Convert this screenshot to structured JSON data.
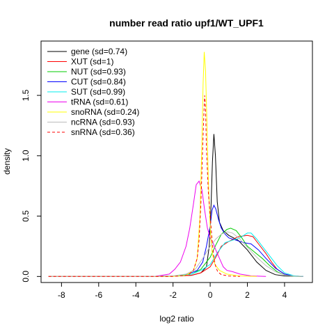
{
  "chart_data": {
    "type": "line",
    "title": "number read ratio upf1/WT_UPF1",
    "xlabel": "log2 ratio",
    "ylabel": "density",
    "xlim": [
      -9.1,
      5.5
    ],
    "ylim": [
      -0.05,
      1.95
    ],
    "x_ticks": [
      -8,
      -6,
      -4,
      -2,
      0,
      2,
      4
    ],
    "x_tick_labels": [
      "-8",
      "-6",
      "-4",
      "-2",
      "0",
      "2",
      "4"
    ],
    "y_ticks": [
      0.0,
      0.5,
      1.0,
      1.5
    ],
    "y_tick_labels": [
      "0.0",
      "0.5",
      "1.0",
      "1.5"
    ],
    "grid": false,
    "legend_position": "top-left",
    "series": [
      {
        "name": "gene (sd=0.74)",
        "color": "#000000",
        "dash": false,
        "points": [
          [
            -8.7,
            0
          ],
          [
            -3.5,
            0
          ],
          [
            -2.0,
            0.002
          ],
          [
            -1.0,
            0.01
          ],
          [
            -0.5,
            0.03
          ],
          [
            -0.2,
            0.08
          ],
          [
            -0.05,
            0.25
          ],
          [
            0.05,
            0.6
          ],
          [
            0.12,
            0.95
          ],
          [
            0.2,
            1.18
          ],
          [
            0.28,
            1.0
          ],
          [
            0.38,
            0.62
          ],
          [
            0.5,
            0.45
          ],
          [
            0.7,
            0.38
          ],
          [
            1.0,
            0.34
          ],
          [
            1.5,
            0.3
          ],
          [
            2.0,
            0.22
          ],
          [
            2.5,
            0.12
          ],
          [
            3.0,
            0.05
          ],
          [
            3.5,
            0.015
          ],
          [
            4.0,
            0.004
          ],
          [
            5.0,
            0
          ]
        ]
      },
      {
        "name": "XUT (sd=1)",
        "color": "#ff0000",
        "dash": false,
        "points": [
          [
            -8.7,
            0
          ],
          [
            -3.5,
            0
          ],
          [
            -2.0,
            0.002
          ],
          [
            -1.0,
            0.01
          ],
          [
            -0.5,
            0.03
          ],
          [
            0,
            0.08
          ],
          [
            0.3,
            0.16
          ],
          [
            0.6,
            0.25
          ],
          [
            1.0,
            0.29
          ],
          [
            1.5,
            0.33
          ],
          [
            2.0,
            0.34
          ],
          [
            2.3,
            0.33
          ],
          [
            2.6,
            0.27
          ],
          [
            3.0,
            0.19
          ],
          [
            3.3,
            0.12
          ],
          [
            3.6,
            0.06
          ],
          [
            4.0,
            0.02
          ],
          [
            4.5,
            0.004
          ],
          [
            5.0,
            0
          ]
        ]
      },
      {
        "name": "NUT (sd=0.93)",
        "color": "#00cc00",
        "dash": false,
        "points": [
          [
            -8.7,
            0
          ],
          [
            -3.5,
            0
          ],
          [
            -2.0,
            0.003
          ],
          [
            -1.0,
            0.02
          ],
          [
            -0.5,
            0.06
          ],
          [
            0,
            0.16
          ],
          [
            0.3,
            0.26
          ],
          [
            0.6,
            0.35
          ],
          [
            0.9,
            0.39
          ],
          [
            1.1,
            0.4
          ],
          [
            1.4,
            0.38
          ],
          [
            1.7,
            0.32
          ],
          [
            2.0,
            0.25
          ],
          [
            2.4,
            0.2
          ],
          [
            2.8,
            0.15
          ],
          [
            3.2,
            0.09
          ],
          [
            3.6,
            0.04
          ],
          [
            4.0,
            0.012
          ],
          [
            4.5,
            0.002
          ],
          [
            5.0,
            0
          ]
        ]
      },
      {
        "name": "CUT (sd=0.84)",
        "color": "#0000ff",
        "dash": false,
        "points": [
          [
            -8.7,
            0
          ],
          [
            -3.5,
            0
          ],
          [
            -2.0,
            0.003
          ],
          [
            -1.2,
            0.02
          ],
          [
            -0.7,
            0.05
          ],
          [
            -0.4,
            0.12
          ],
          [
            -0.2,
            0.25
          ],
          [
            0,
            0.42
          ],
          [
            0.1,
            0.55
          ],
          [
            0.2,
            0.59
          ],
          [
            0.3,
            0.56
          ],
          [
            0.45,
            0.47
          ],
          [
            0.6,
            0.4
          ],
          [
            0.8,
            0.35
          ],
          [
            1.0,
            0.32
          ],
          [
            1.4,
            0.3
          ],
          [
            1.8,
            0.28
          ],
          [
            2.2,
            0.27
          ],
          [
            2.6,
            0.22
          ],
          [
            3.0,
            0.15
          ],
          [
            3.5,
            0.07
          ],
          [
            4.0,
            0.02
          ],
          [
            4.5,
            0.004
          ],
          [
            5.0,
            0
          ]
        ]
      },
      {
        "name": "SUT (sd=0.99)",
        "color": "#00eeee",
        "dash": false,
        "points": [
          [
            -8.7,
            0
          ],
          [
            -3.5,
            0
          ],
          [
            -2.0,
            0.003
          ],
          [
            -1.0,
            0.02
          ],
          [
            -0.5,
            0.05
          ],
          [
            0,
            0.1
          ],
          [
            0.4,
            0.2
          ],
          [
            0.8,
            0.28
          ],
          [
            1.2,
            0.3
          ],
          [
            1.6,
            0.32
          ],
          [
            2.0,
            0.36
          ],
          [
            2.2,
            0.36
          ],
          [
            2.5,
            0.31
          ],
          [
            2.8,
            0.25
          ],
          [
            3.2,
            0.17
          ],
          [
            3.6,
            0.09
          ],
          [
            4.0,
            0.03
          ],
          [
            4.5,
            0.006
          ],
          [
            5.0,
            0
          ]
        ]
      },
      {
        "name": "tRNA (sd=0.61)",
        "color": "#ee00ee",
        "dash": false,
        "points": [
          [
            -8.7,
            0
          ],
          [
            -3.0,
            0
          ],
          [
            -2.6,
            0.01
          ],
          [
            -2.2,
            0.02
          ],
          [
            -1.9,
            0.06
          ],
          [
            -1.6,
            0.12
          ],
          [
            -1.3,
            0.25
          ],
          [
            -1.1,
            0.4
          ],
          [
            -0.9,
            0.6
          ],
          [
            -0.75,
            0.76
          ],
          [
            -0.6,
            0.79
          ],
          [
            -0.45,
            0.72
          ],
          [
            -0.3,
            0.55
          ],
          [
            -0.15,
            0.4
          ],
          [
            0,
            0.32
          ],
          [
            0.15,
            0.28
          ],
          [
            0.3,
            0.22
          ],
          [
            0.5,
            0.15
          ],
          [
            0.7,
            0.08
          ],
          [
            0.9,
            0.05
          ],
          [
            1.2,
            0.04
          ],
          [
            1.6,
            0.02
          ],
          [
            2.2,
            0.005
          ],
          [
            3.0,
            0
          ]
        ]
      },
      {
        "name": "snoRNA (sd=0.24)",
        "color": "#ffff00",
        "dash": false,
        "points": [
          [
            -8.7,
            0
          ],
          [
            -2.0,
            0
          ],
          [
            -1.3,
            0.01
          ],
          [
            -0.9,
            0.05
          ],
          [
            -0.7,
            0.15
          ],
          [
            -0.55,
            0.5
          ],
          [
            -0.45,
            1.1
          ],
          [
            -0.38,
            1.6
          ],
          [
            -0.32,
            1.86
          ],
          [
            -0.25,
            1.7
          ],
          [
            -0.18,
            1.3
          ],
          [
            -0.1,
            0.8
          ],
          [
            0,
            0.4
          ],
          [
            0.1,
            0.2
          ],
          [
            0.25,
            0.1
          ],
          [
            0.5,
            0.05
          ],
          [
            0.9,
            0.02
          ],
          [
            1.5,
            0.005
          ],
          [
            2.5,
            0
          ]
        ]
      },
      {
        "name": "ncRNA (sd=0.93)",
        "color": "#bbbbbb",
        "dash": false,
        "points": [
          [
            -8.7,
            0
          ],
          [
            -3.5,
            0
          ],
          [
            -2.0,
            0.005
          ],
          [
            -1.3,
            0.02
          ],
          [
            -0.8,
            0.06
          ],
          [
            -0.4,
            0.15
          ],
          [
            0,
            0.25
          ],
          [
            0.3,
            0.31
          ],
          [
            0.6,
            0.35
          ],
          [
            0.9,
            0.37
          ],
          [
            1.2,
            0.36
          ],
          [
            1.6,
            0.31
          ],
          [
            2.0,
            0.24
          ],
          [
            2.5,
            0.16
          ],
          [
            3.0,
            0.09
          ],
          [
            3.5,
            0.04
          ],
          [
            4.0,
            0.012
          ],
          [
            4.5,
            0.003
          ],
          [
            5.0,
            0
          ]
        ]
      },
      {
        "name": "snRNA (sd=0.36)",
        "color": "#ff0000",
        "dash": true,
        "points": [
          [
            -8.7,
            0
          ],
          [
            -2.0,
            0
          ],
          [
            -1.2,
            0.01
          ],
          [
            -0.9,
            0.05
          ],
          [
            -0.7,
            0.15
          ],
          [
            -0.6,
            0.3
          ],
          [
            -0.5,
            0.6
          ],
          [
            -0.42,
            1.0
          ],
          [
            -0.35,
            1.3
          ],
          [
            -0.3,
            1.5
          ],
          [
            -0.25,
            1.4
          ],
          [
            -0.2,
            1.05
          ],
          [
            -0.1,
            0.7
          ],
          [
            0,
            0.5
          ],
          [
            0.1,
            0.3
          ],
          [
            0.2,
            0.15
          ],
          [
            0.3,
            0.08
          ],
          [
            0.4,
            0.04
          ],
          [
            0.6,
            0.015
          ],
          [
            1.0,
            0.004
          ],
          [
            1.6,
            0
          ]
        ]
      }
    ]
  }
}
